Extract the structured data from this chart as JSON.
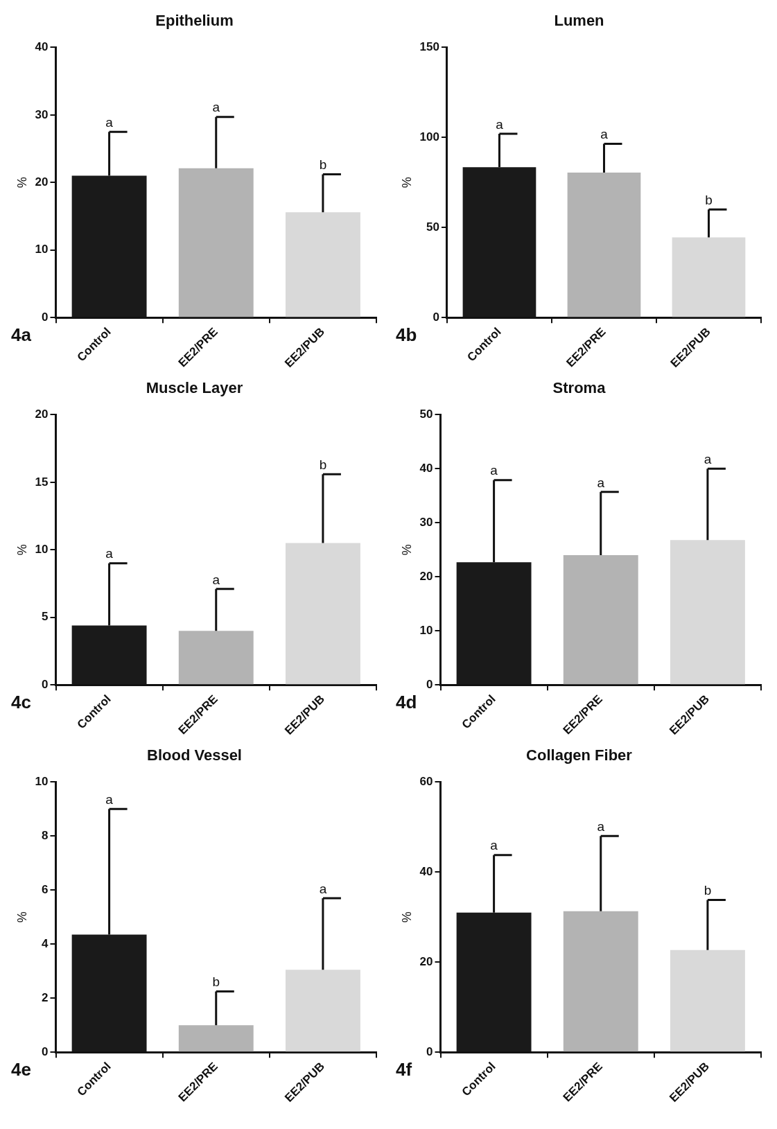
{
  "chart_data": [
    {
      "type": "bar",
      "title": "Epithelium",
      "ylabel": "%",
      "categories": [
        "Control",
        "EE2/PRE",
        "EE2/PUB"
      ],
      "values": [
        21,
        22.1,
        15.6
      ],
      "errors": [
        [
          21,
          27.5
        ],
        [
          22.1,
          29.7
        ],
        [
          15.6,
          21.2
        ]
      ],
      "colors": [
        "#1a1a1a",
        "#b3b3b3",
        "#d9d9d9"
      ],
      "ylim": [
        0,
        40
      ],
      "yticks": [
        0,
        10,
        20,
        30,
        40
      ],
      "grid": false,
      "legend": false,
      "annotations": [
        {
          "text": "a",
          "x": "Control",
          "y": 27.5
        },
        {
          "text": "a",
          "x": "EE2/PRE",
          "y": 29.7
        },
        {
          "text": "b",
          "x": "EE2/PUB",
          "y": 21.2
        },
        "4a"
      ]
    },
    {
      "type": "bar",
      "title": "Lumen",
      "ylabel": "%",
      "categories": [
        "Control",
        "EE2/PRE",
        "EE2/PUB"
      ],
      "values": [
        83.5,
        80.5,
        44.5
      ],
      "errors": [
        [
          83.5,
          102
        ],
        [
          80.5,
          96.5
        ],
        [
          44.5,
          60
        ]
      ],
      "colors": [
        "#1a1a1a",
        "#b3b3b3",
        "#d9d9d9"
      ],
      "ylim": [
        0,
        150
      ],
      "yticks": [
        0,
        50,
        100,
        150
      ],
      "grid": false,
      "legend": false,
      "annotations": [
        {
          "text": "a",
          "x": "Control",
          "y": 102
        },
        {
          "text": "a",
          "x": "EE2/PRE",
          "y": 96.5
        },
        {
          "text": "b",
          "x": "EE2/PUB",
          "y": 60
        },
        "4b"
      ]
    },
    {
      "type": "bar",
      "title": "Muscle Layer",
      "ylabel": "%",
      "categories": [
        "Control",
        "EE2/PRE",
        "EE2/PUB"
      ],
      "values": [
        4.4,
        4,
        10.5
      ],
      "errors": [
        [
          4.4,
          9
        ],
        [
          4,
          7.1
        ],
        [
          10.5,
          15.6
        ]
      ],
      "colors": [
        "#1a1a1a",
        "#b3b3b3",
        "#d9d9d9"
      ],
      "ylim": [
        0,
        20
      ],
      "yticks": [
        0,
        5,
        10,
        15,
        20
      ],
      "grid": false,
      "legend": false,
      "annotations": [
        {
          "text": "a",
          "x": "Control",
          "y": 9
        },
        {
          "text": "a",
          "x": "EE2/PRE",
          "y": 7.1
        },
        {
          "text": "b",
          "x": "EE2/PUB",
          "y": 15.6
        },
        "4c"
      ]
    },
    {
      "type": "bar",
      "title": "Stroma",
      "ylabel": "%",
      "categories": [
        "Control",
        "EE2/PRE",
        "EE2/PUB"
      ],
      "values": [
        22.7,
        24,
        26.8
      ],
      "errors": [
        [
          22.7,
          37.9
        ],
        [
          24,
          35.7
        ],
        [
          26.8,
          40
        ]
      ],
      "colors": [
        "#1a1a1a",
        "#b3b3b3",
        "#d9d9d9"
      ],
      "ylim": [
        0,
        50
      ],
      "yticks": [
        0,
        10,
        20,
        30,
        40,
        50
      ],
      "grid": false,
      "legend": false,
      "annotations": [
        {
          "text": "a",
          "x": "Control",
          "y": 37.9
        },
        {
          "text": "a",
          "x": "EE2/PRE",
          "y": 35.7
        },
        {
          "text": "a",
          "x": "EE2/PUB",
          "y": 40
        },
        "4d"
      ]
    },
    {
      "type": "bar",
      "title": "Blood Vessel",
      "ylabel": "%",
      "categories": [
        "Control",
        "EE2/PRE",
        "EE2/PUB"
      ],
      "values": [
        4.35,
        1,
        3.05
      ],
      "errors": [
        [
          4.35,
          9
        ],
        [
          1,
          2.25
        ],
        [
          3.05,
          5.7
        ]
      ],
      "colors": [
        "#1a1a1a",
        "#b3b3b3",
        "#d9d9d9"
      ],
      "ylim": [
        0,
        10
      ],
      "yticks": [
        0,
        2,
        4,
        6,
        8,
        10
      ],
      "grid": false,
      "legend": false,
      "annotations": [
        {
          "text": "a",
          "x": "Control",
          "y": 9
        },
        {
          "text": "b",
          "x": "EE2/PRE",
          "y": 2.25
        },
        {
          "text": "a",
          "x": "EE2/PUB",
          "y": 5.7
        },
        "4e"
      ]
    },
    {
      "type": "bar",
      "title": "Collagen Fiber",
      "ylabel": "%",
      "categories": [
        "Control",
        "EE2/PRE",
        "EE2/PUB"
      ],
      "values": [
        31,
        31.3,
        22.7
      ],
      "errors": [
        [
          31,
          43.8
        ],
        [
          31.3,
          48
        ],
        [
          22.7,
          33.8
        ]
      ],
      "colors": [
        "#1a1a1a",
        "#b3b3b3",
        "#d9d9d9"
      ],
      "ylim": [
        0,
        60
      ],
      "yticks": [
        0,
        20,
        40,
        60
      ],
      "grid": false,
      "legend": false,
      "annotations": [
        {
          "text": "a",
          "x": "Control",
          "y": 43.8
        },
        {
          "text": "a",
          "x": "EE2/PRE",
          "y": 48
        },
        {
          "text": "b",
          "x": "EE2/PUB",
          "y": 33.8
        },
        "4f"
      ]
    }
  ]
}
